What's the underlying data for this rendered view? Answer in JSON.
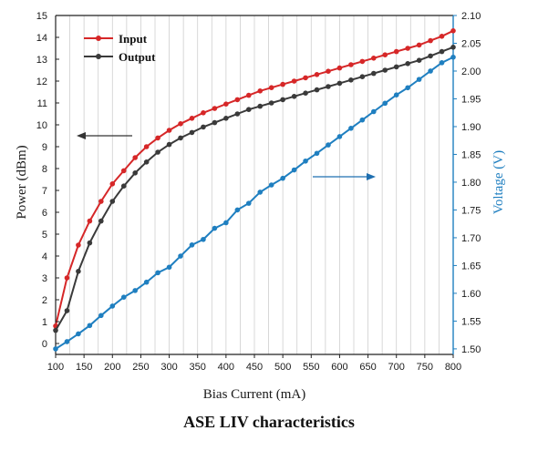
{
  "caption": "ASE LIV characteristics",
  "colors": {
    "input": "#d62728",
    "output": "#3a3a3a",
    "voltage": "#1f7fc0",
    "grid": "#cfcfcf",
    "arrow_left": "#333333",
    "arrow_right": "#1f6fb0"
  },
  "chart_data": {
    "type": "line",
    "title": "",
    "xlabel": "Bias Current (mA)",
    "ylabel": "Power (dBm)",
    "y2label": "Voltage (V)",
    "xlim": [
      100,
      800
    ],
    "ylim": [
      -0.5,
      15
    ],
    "y2lim": [
      1.49,
      2.1
    ],
    "xticks": [
      "100",
      "150",
      "200",
      "250",
      "300",
      "350",
      "400",
      "450",
      "500",
      "550",
      "600",
      "650",
      "700",
      "750",
      "800"
    ],
    "yticks": [
      "0",
      "1",
      "2",
      "3",
      "4",
      "5",
      "6",
      "7",
      "8",
      "9",
      "10",
      "11",
      "12",
      "13",
      "14",
      "15"
    ],
    "y2ticks": [
      "1.50",
      "1.55",
      "1.60",
      "1.65",
      "1.70",
      "1.75",
      "1.80",
      "1.85",
      "1.90",
      "1.95",
      "2.00",
      "2.05",
      "2.10"
    ],
    "grid": "vertical",
    "legend": {
      "position": "top-left",
      "entries": [
        "Input",
        "Output"
      ]
    },
    "x": [
      100,
      120,
      140,
      160,
      180,
      200,
      220,
      240,
      260,
      280,
      300,
      320,
      340,
      360,
      380,
      400,
      420,
      440,
      460,
      480,
      500,
      520,
      540,
      560,
      580,
      600,
      620,
      640,
      660,
      680,
      700,
      720,
      740,
      760,
      780,
      800
    ],
    "series": [
      {
        "name": "Input",
        "axis": "left",
        "values": [
          0.8,
          3.0,
          4.5,
          5.6,
          6.5,
          7.3,
          7.9,
          8.5,
          9.0,
          9.4,
          9.75,
          10.05,
          10.3,
          10.55,
          10.75,
          10.95,
          11.15,
          11.35,
          11.55,
          11.7,
          11.85,
          12.0,
          12.15,
          12.3,
          12.45,
          12.6,
          12.75,
          12.9,
          13.05,
          13.2,
          13.35,
          13.5,
          13.65,
          13.85,
          14.05,
          14.3
        ]
      },
      {
        "name": "Output",
        "axis": "left",
        "values": [
          0.6,
          1.5,
          3.3,
          4.6,
          5.6,
          6.5,
          7.2,
          7.8,
          8.3,
          8.75,
          9.1,
          9.4,
          9.65,
          9.9,
          10.1,
          10.3,
          10.5,
          10.7,
          10.85,
          11.0,
          11.15,
          11.3,
          11.45,
          11.6,
          11.75,
          11.9,
          12.05,
          12.2,
          12.35,
          12.5,
          12.65,
          12.8,
          12.95,
          13.15,
          13.35,
          13.55
        ]
      },
      {
        "name": "",
        "axis": "right",
        "values": [
          1.5,
          1.513,
          1.527,
          1.542,
          1.56,
          1.577,
          1.593,
          1.605,
          1.62,
          1.637,
          1.647,
          1.667,
          1.687,
          1.697,
          1.717,
          1.727,
          1.75,
          1.762,
          1.782,
          1.795,
          1.807,
          1.822,
          1.838,
          1.852,
          1.867,
          1.882,
          1.897,
          1.912,
          1.927,
          1.942,
          1.957,
          1.97,
          1.985,
          2.0,
          2.015,
          2.025
        ]
      }
    ],
    "annotations": [
      {
        "type": "arrow",
        "direction": "left",
        "points_to": "left axis"
      },
      {
        "type": "arrow",
        "direction": "right",
        "points_to": "right axis"
      }
    ]
  }
}
